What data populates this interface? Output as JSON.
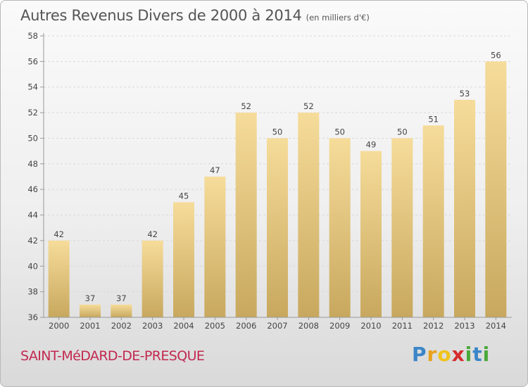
{
  "header": {
    "title": "Autres Revenus Divers de 2000 à 2014",
    "unit": "(en milliers d'€)"
  },
  "footer": {
    "place": "SAINT-MéDARD-DE-PRESQUE",
    "logo": {
      "letters": [
        "P",
        "r",
        "o",
        "x",
        "i",
        "t",
        "i"
      ],
      "colors": [
        "#3a86c8",
        "#e8a11d",
        "#f0c419",
        "#d62c2c",
        "#4aa83a",
        "#3a86c8",
        "#4aa83a"
      ]
    }
  },
  "colors": {
    "bar_light": "#f6dc9a",
    "bar_dark": "#c8a85e",
    "axis": "#999999",
    "grid": "#d8d8d8",
    "text": "#444444"
  },
  "chart_data": {
    "type": "bar",
    "title": "Autres Revenus Divers de 2000 à 2014",
    "subtitle": "(en milliers d'€)",
    "xlabel": "",
    "ylabel": "",
    "categories": [
      "2000",
      "2001",
      "2002",
      "2003",
      "2004",
      "2005",
      "2006",
      "2007",
      "2008",
      "2009",
      "2010",
      "2011",
      "2012",
      "2013",
      "2014"
    ],
    "values": [
      42,
      37,
      37,
      42,
      45,
      47,
      52,
      50,
      52,
      50,
      49,
      50,
      51,
      53,
      56
    ],
    "data_labels": [
      "42",
      "37",
      "37",
      "42",
      "45",
      "47",
      "52",
      "50",
      "52",
      "50",
      "49",
      "50",
      "51",
      "53",
      "56"
    ],
    "ylim": [
      36,
      58
    ],
    "yticks": [
      36,
      38,
      40,
      42,
      44,
      46,
      48,
      50,
      52,
      54,
      56,
      58
    ],
    "grid": true,
    "legend": "none"
  }
}
